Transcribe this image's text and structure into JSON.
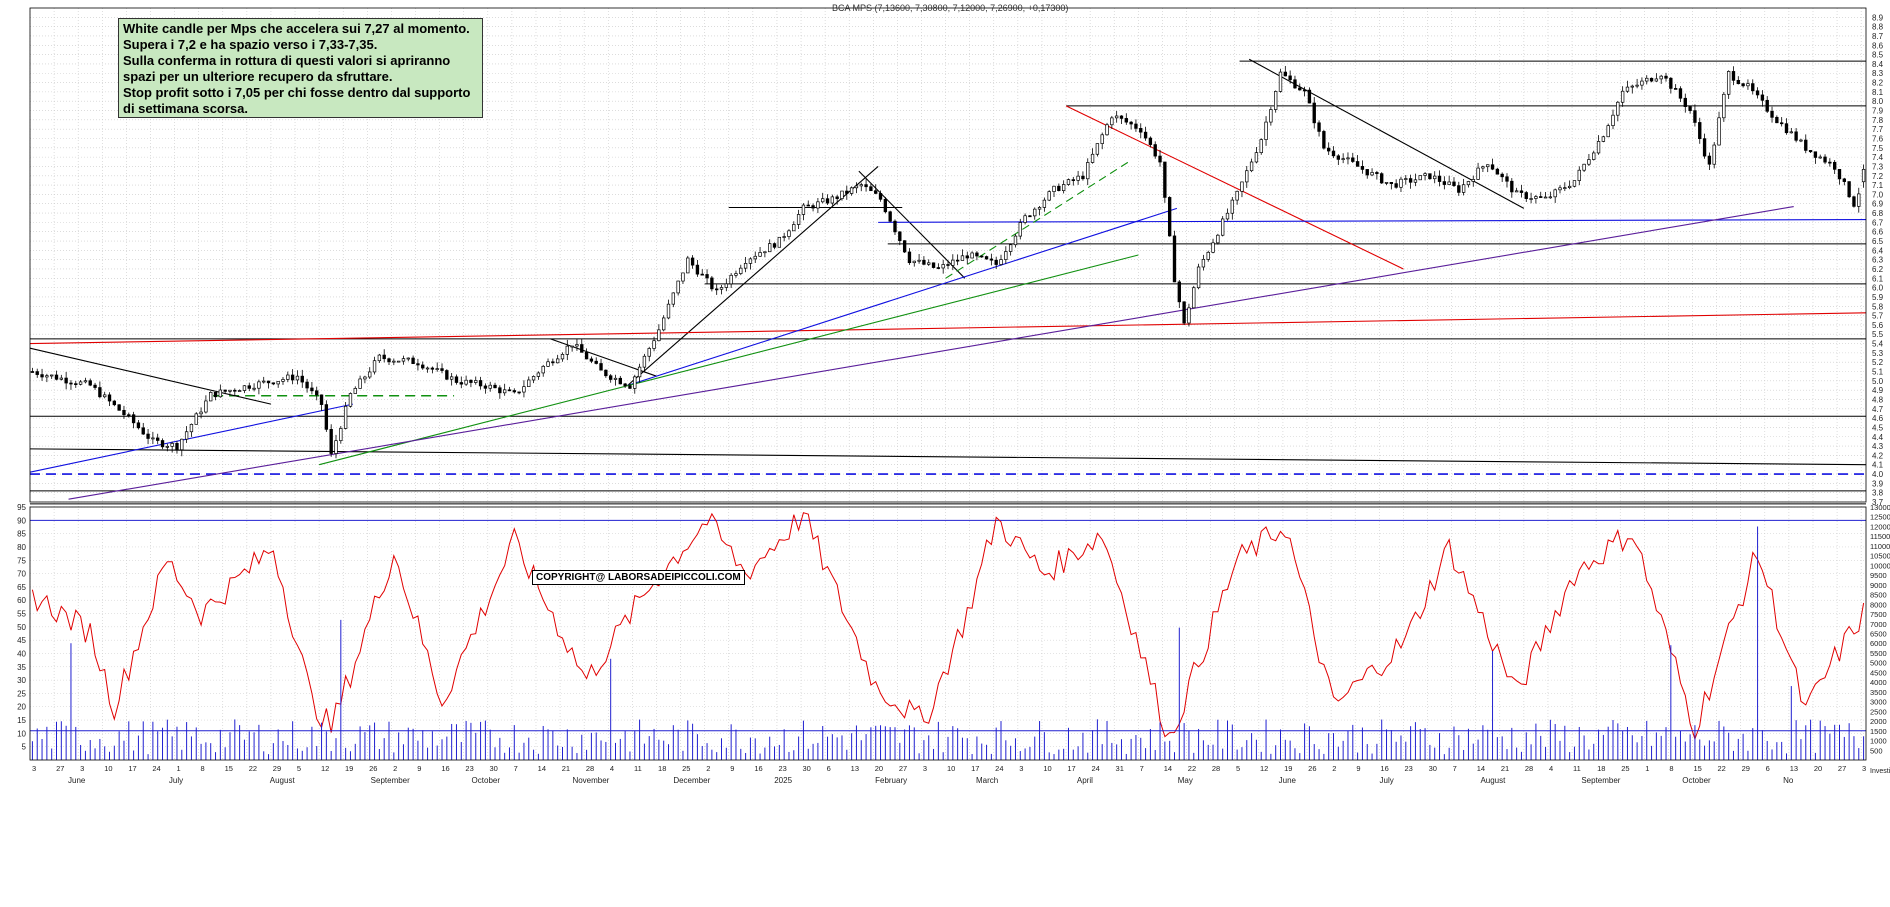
{
  "header": {
    "title": "BCA MPS (7,13600, 7,30800, 7,12000, 7,26900, +0,17300)"
  },
  "annotation": {
    "lines": [
      "White candle per Mps che accelera sui 7,27 al momento.",
      "Supera i 7,2 e ha spazio verso i 7,33-7,35.",
      "Sulla conferma in rottura di questi valori si apriranno",
      "spazi per un ulteriore recupero da sfruttare.",
      "Stop profit sotto i 7,05 per chi fosse dentro dal supporto",
      "di settimana scorsa."
    ]
  },
  "copyright": "COPYRIGHT@ LABORSADEIPICCOLI.COM",
  "colors": {
    "background": "#ffffff",
    "grid": "#c8c8c8",
    "candle": "#000000",
    "oscillator": "#e00000",
    "volume": "#2020d0",
    "note_bg": "#c8e8c0",
    "trend_black": "#000000",
    "trend_red": "#e00000",
    "trend_blue": "#1010e0",
    "trend_green": "#109010",
    "trend_purple": "#5a1e9a"
  },
  "chart_data": [
    {
      "type": "candlestick",
      "title": "BCA MPS (7,13600, 7,30800, 7,12000, 7,26900, +0,17300)",
      "ylim": [
        3.7,
        9.0
      ],
      "y_axis_side": "right",
      "y_ticks": [
        "3.7",
        "3.8",
        "3.9",
        "4.0",
        "4.1",
        "4.2",
        "4.3",
        "4.4",
        "4.5",
        "4.6",
        "4.7",
        "4.8",
        "4.9",
        "5.0",
        "5.1",
        "5.2",
        "5.3",
        "5.4",
        "5.5",
        "5.6",
        "5.7",
        "5.8",
        "5.9",
        "6.0",
        "6.1",
        "6.2",
        "6.3",
        "6.4",
        "6.5",
        "6.6",
        "6.7",
        "6.8",
        "6.9",
        "7.0",
        "7.1",
        "7.2",
        "7.3",
        "7.4",
        "7.5",
        "7.6",
        "7.7",
        "7.8",
        "7.9",
        "8.0",
        "8.1",
        "8.2",
        "8.3",
        "8.4",
        "8.5",
        "8.6",
        "8.7",
        "8.8",
        "8.9"
      ],
      "last_candle": {
        "open": 7.136,
        "high": 7.308,
        "low": 7.12,
        "close": 7.269,
        "change": 0.173
      },
      "price_path": [
        [
          0,
          5.1
        ],
        [
          12,
          4.95
        ],
        [
          20,
          4.6
        ],
        [
          25,
          4.35
        ],
        [
          30,
          4.3
        ],
        [
          37,
          4.85
        ],
        [
          45,
          4.95
        ],
        [
          55,
          5.05
        ],
        [
          60,
          4.75
        ],
        [
          62,
          4.2
        ],
        [
          66,
          4.85
        ],
        [
          72,
          5.25
        ],
        [
          80,
          5.2
        ],
        [
          88,
          5.0
        ],
        [
          94,
          4.95
        ],
        [
          100,
          4.85
        ],
        [
          106,
          5.15
        ],
        [
          112,
          5.4
        ],
        [
          118,
          5.1
        ],
        [
          124,
          4.95
        ],
        [
          130,
          5.55
        ],
        [
          136,
          6.3
        ],
        [
          142,
          5.95
        ],
        [
          148,
          6.3
        ],
        [
          155,
          6.5
        ],
        [
          160,
          6.85
        ],
        [
          166,
          6.95
        ],
        [
          172,
          7.1
        ],
        [
          176,
          6.95
        ],
        [
          182,
          6.3
        ],
        [
          188,
          6.2
        ],
        [
          194,
          6.35
        ],
        [
          200,
          6.25
        ],
        [
          206,
          6.75
        ],
        [
          212,
          7.05
        ],
        [
          218,
          7.2
        ],
        [
          224,
          7.85
        ],
        [
          230,
          7.7
        ],
        [
          234,
          7.35
        ],
        [
          237,
          6.1
        ],
        [
          239,
          5.6
        ],
        [
          242,
          6.2
        ],
        [
          246,
          6.6
        ],
        [
          250,
          7.0
        ],
        [
          255,
          7.6
        ],
        [
          259,
          8.3
        ],
        [
          264,
          8.1
        ],
        [
          268,
          7.5
        ],
        [
          275,
          7.3
        ],
        [
          282,
          7.1
        ],
        [
          290,
          7.2
        ],
        [
          296,
          7.05
        ],
        [
          302,
          7.35
        ],
        [
          308,
          7.0
        ],
        [
          314,
          6.95
        ],
        [
          320,
          7.15
        ],
        [
          326,
          7.65
        ],
        [
          330,
          8.1
        ],
        [
          338,
          8.3
        ],
        [
          344,
          7.9
        ],
        [
          348,
          7.3
        ],
        [
          352,
          8.3
        ],
        [
          356,
          8.15
        ],
        [
          362,
          7.8
        ],
        [
          368,
          7.5
        ],
        [
          374,
          7.3
        ],
        [
          378,
          6.9
        ],
        [
          381,
          7.27
        ]
      ],
      "trendlines": [
        {
          "color": "trend_black",
          "from": [
            0,
            5.35
          ],
          "to": [
            50,
            4.75
          ]
        },
        {
          "color": "trend_black",
          "from": [
            0,
            4.27
          ],
          "to": [
            381,
            4.1
          ]
        },
        {
          "color": "trend_black",
          "from": [
            108,
            5.45
          ],
          "to": [
            130,
            5.05
          ]
        },
        {
          "color": "trend_black",
          "from": [
            124,
            4.95
          ],
          "to": [
            176,
            7.3
          ]
        },
        {
          "color": "trend_black",
          "from": [
            172,
            7.25
          ],
          "to": [
            194,
            6.1
          ]
        },
        {
          "color": "trend_black",
          "from": [
            253,
            8.45
          ],
          "to": [
            310,
            6.85
          ]
        },
        {
          "color": "trend_red",
          "from": [
            0,
            5.4
          ],
          "to": [
            381,
            5.73
          ]
        },
        {
          "color": "trend_red",
          "from": [
            215,
            7.95
          ],
          "to": [
            285,
            6.2
          ]
        },
        {
          "color": "trend_blue",
          "from": [
            0,
            4.02
          ],
          "to": [
            67,
            4.75
          ]
        },
        {
          "color": "trend_blue",
          "from": [
            124,
            4.95
          ],
          "to": [
            238,
            6.85
          ]
        },
        {
          "color": "trend_blue",
          "from": [
            176,
            6.7
          ],
          "to": [
            381,
            6.73
          ]
        },
        {
          "color": "trend_green",
          "from": [
            60,
            4.1
          ],
          "to": [
            230,
            6.35
          ]
        },
        {
          "color": "trend_green",
          "from": [
            190,
            6.1
          ],
          "to": [
            228,
            7.35
          ],
          "dashed": true
        },
        {
          "color": "trend_purple",
          "from": [
            8,
            3.73
          ],
          "to": [
            366,
            6.87
          ]
        }
      ],
      "support_resistance": [
        {
          "value": 8.43,
          "from": 251,
          "to": 381
        },
        {
          "value": 7.95,
          "from": 215,
          "to": 381
        },
        {
          "value": 6.86,
          "from": 145,
          "to": 181
        },
        {
          "value": 6.47,
          "from": 178,
          "to": 381
        },
        {
          "value": 6.04,
          "from": 140,
          "to": 381
        },
        {
          "value": 5.45,
          "from": 0,
          "to": 381
        },
        {
          "value": 4.62,
          "from": 0,
          "to": 381
        },
        {
          "value": 4.0,
          "from": 0,
          "to": 381,
          "dashed": true,
          "color": "trend_blue"
        },
        {
          "value": 3.82,
          "from": 0,
          "to": 381
        },
        {
          "value": 3.68,
          "from": 0,
          "to": 381
        },
        {
          "value": 4.84,
          "from": 38,
          "to": 88,
          "dashed": true,
          "color": "trend_green"
        }
      ]
    },
    {
      "type": "line",
      "series": [
        {
          "values_kind": "oscillator"
        }
      ],
      "ylim": [
        0,
        95
      ],
      "y_ticks_left": [
        "5",
        "10",
        "15",
        "20",
        "25",
        "30",
        "35",
        "40",
        "45",
        "50",
        "55",
        "60",
        "65",
        "70",
        "75",
        "80",
        "85",
        "90",
        "95"
      ],
      "reference_line": 90,
      "peaks": [
        [
          0,
          62
        ],
        [
          12,
          48
        ],
        [
          17,
          20
        ],
        [
          28,
          75
        ],
        [
          35,
          55
        ],
        [
          50,
          80
        ],
        [
          58,
          22
        ],
        [
          62,
          12
        ],
        [
          75,
          78
        ],
        [
          85,
          22
        ],
        [
          100,
          82
        ],
        [
          115,
          30
        ],
        [
          128,
          65
        ],
        [
          140,
          90
        ],
        [
          148,
          70
        ],
        [
          160,
          92
        ],
        [
          175,
          28
        ],
        [
          185,
          14
        ],
        [
          194,
          55
        ],
        [
          200,
          90
        ],
        [
          210,
          70
        ],
        [
          222,
          85
        ],
        [
          236,
          8
        ],
        [
          250,
          75
        ],
        [
          260,
          88
        ],
        [
          270,
          20
        ],
        [
          285,
          45
        ],
        [
          294,
          80
        ],
        [
          308,
          25
        ],
        [
          320,
          70
        ],
        [
          332,
          86
        ],
        [
          345,
          12
        ],
        [
          358,
          78
        ],
        [
          368,
          18
        ],
        [
          374,
          38
        ],
        [
          381,
          58
        ]
      ]
    },
    {
      "type": "bar",
      "series": [
        {
          "values_kind": "volume"
        }
      ],
      "ylim": [
        0,
        13000
      ],
      "y_ticks_right": [
        "500",
        "1000",
        "1500",
        "2000",
        "2500",
        "3000",
        "3500",
        "4000",
        "4500",
        "5000",
        "5500",
        "6000",
        "6500",
        "7000",
        "7500",
        "8000",
        "8500",
        "9000",
        "9500",
        "10000",
        "10500",
        "11000",
        "11500",
        "12000",
        "12500",
        "13000"
      ],
      "reference_line": 1500,
      "spikes": [
        [
          8,
          6000
        ],
        [
          64,
          7200
        ],
        [
          120,
          5200
        ],
        [
          238,
          6800
        ],
        [
          303,
          5600
        ],
        [
          340,
          5900
        ],
        [
          358,
          12000
        ],
        [
          365,
          3800
        ]
      ]
    }
  ],
  "x_axis": {
    "day_ticks": [
      "3",
      "27",
      "3",
      "10",
      "17",
      "24",
      "1",
      "8",
      "15",
      "22",
      "29",
      "5",
      "12",
      "19",
      "26",
      "2",
      "9",
      "16",
      "23",
      "30",
      "7",
      "14",
      "21",
      "28",
      "4",
      "11",
      "18",
      "25",
      "2",
      "9",
      "16",
      "23",
      "30",
      "6",
      "13",
      "20",
      "27",
      "3",
      "10",
      "17",
      "24",
      "3",
      "10",
      "17",
      "24",
      "31",
      "7",
      "14",
      "22",
      "28",
      "5",
      "12",
      "19",
      "26",
      "2",
      "9",
      "16",
      "23",
      "30",
      "7",
      "14",
      "21",
      "28",
      "4",
      "11",
      "18",
      "25",
      "1",
      "8",
      "15",
      "22",
      "29",
      "6",
      "13",
      "20",
      "27",
      "3"
    ],
    "month_labels": [
      "June",
      "July",
      "August",
      "September",
      "October",
      "November",
      "December",
      "2025",
      "February",
      "March",
      "April",
      "May",
      "June",
      "July",
      "August",
      "September",
      "October",
      "No"
    ],
    "corner_label": "Investi"
  }
}
